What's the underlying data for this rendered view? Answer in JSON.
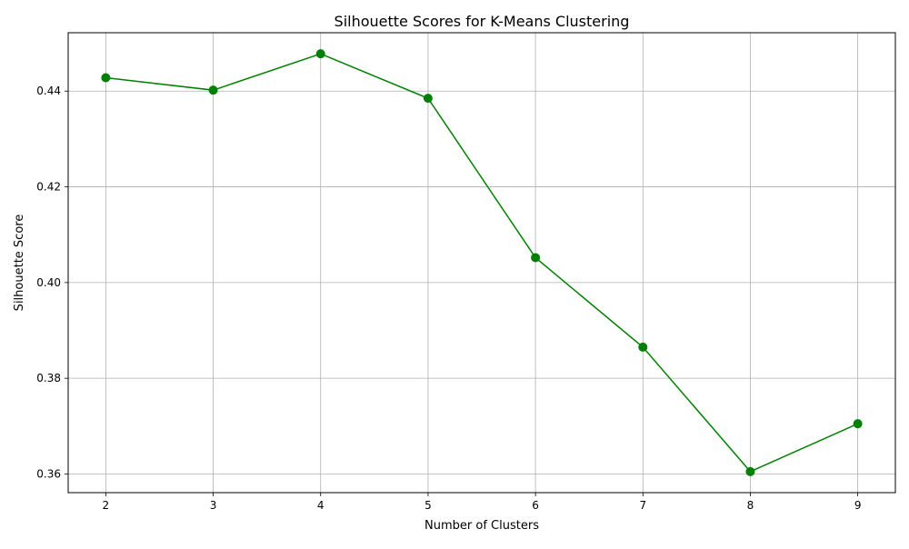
{
  "chart_data": {
    "type": "line",
    "title": "Silhouette Scores for K-Means Clustering",
    "xlabel": "Number of Clusters",
    "ylabel": "Silhouette Score",
    "x": [
      2,
      3,
      4,
      5,
      6,
      7,
      8,
      9
    ],
    "series": [
      {
        "values": [
          0.4428,
          0.4402,
          0.4478,
          0.4385,
          0.4052,
          0.3865,
          0.3605,
          0.3705
        ],
        "color": "#008000",
        "marker": "circle"
      }
    ],
    "x_ticks": [
      "2",
      "3",
      "4",
      "5",
      "6",
      "7",
      "8",
      "9"
    ],
    "y_ticks": [
      "0.36",
      "0.38",
      "0.40",
      "0.42",
      "0.44"
    ],
    "xlim": [
      1.65,
      9.35
    ],
    "ylim": [
      0.3561,
      0.4522
    ],
    "grid": true,
    "grid_color": "#b0b0b0",
    "legend": false
  }
}
